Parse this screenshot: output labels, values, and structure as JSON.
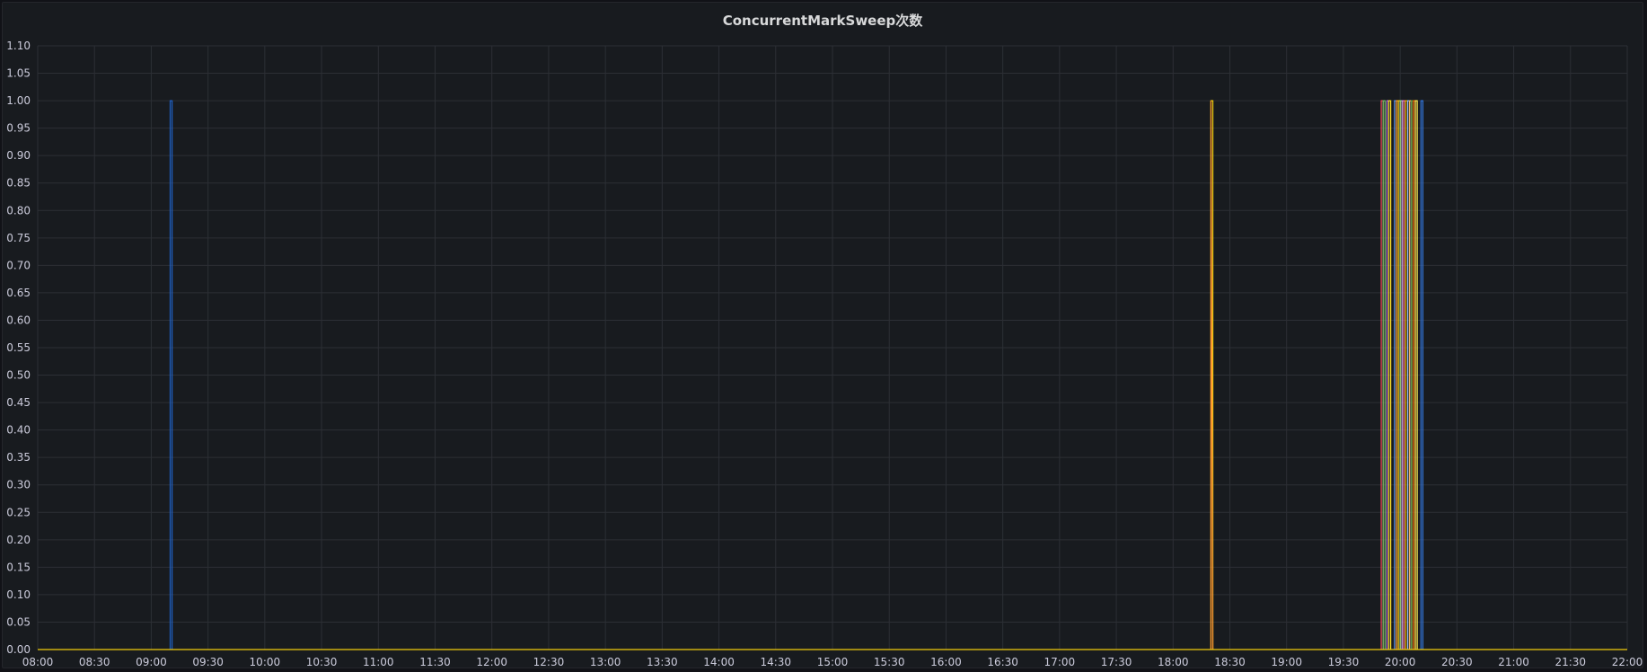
{
  "panel": {
    "title": "ConcurrentMarkSweep次数"
  },
  "chart_data": {
    "type": "line",
    "title": "ConcurrentMarkSweep次数",
    "xlabel": "",
    "ylabel": "",
    "grid": true,
    "legend": "none",
    "x_range": [
      "08:00",
      "22:00"
    ],
    "ylim": [
      0,
      1.1
    ],
    "y_ticks": [
      "0.00",
      "0.05",
      "0.10",
      "0.15",
      "0.20",
      "0.25",
      "0.30",
      "0.35",
      "0.40",
      "0.45",
      "0.50",
      "0.55",
      "0.60",
      "0.65",
      "0.70",
      "0.75",
      "0.80",
      "0.85",
      "0.90",
      "0.95",
      "1.00",
      "1.05",
      "1.10"
    ],
    "x_ticks": [
      "08:00",
      "08:30",
      "09:00",
      "09:30",
      "10:00",
      "10:30",
      "11:00",
      "11:30",
      "12:00",
      "12:30",
      "13:00",
      "13:30",
      "14:00",
      "14:30",
      "15:00",
      "15:30",
      "16:00",
      "16:30",
      "17:00",
      "17:30",
      "18:00",
      "18:30",
      "19:00",
      "19:30",
      "20:00",
      "20:30",
      "21:00",
      "21:30",
      "22:00"
    ],
    "colors": {
      "background": "#181b1f",
      "grid": "#2c2f35",
      "axis_text": "#ccccdc",
      "title_text": "#d8d9da"
    },
    "series": [
      {
        "color": "#1f60c4",
        "points": [
          [
            "09:10",
            0
          ],
          [
            "09:10",
            1
          ],
          [
            "09:11",
            1
          ],
          [
            "09:11",
            0
          ]
        ]
      },
      {
        "color": "#f2cc0c",
        "points": [
          [
            "18:20",
            0
          ],
          [
            "18:20",
            1
          ],
          [
            "18:21",
            1
          ],
          [
            "18:21",
            0
          ]
        ]
      },
      {
        "color": "#ff9830",
        "points": [
          [
            "18:20",
            0
          ],
          [
            "18:20",
            1
          ],
          [
            "18:20",
            1
          ],
          [
            "18:21",
            0
          ]
        ]
      },
      {
        "color": "#f2495c",
        "points": [
          [
            "19:50",
            0
          ],
          [
            "19:50",
            1
          ],
          [
            "19:51",
            1
          ],
          [
            "19:51",
            0
          ]
        ]
      },
      {
        "color": "#73bf69",
        "points": [
          [
            "19:51",
            0
          ],
          [
            "19:51",
            1
          ],
          [
            "19:52",
            1
          ],
          [
            "19:52",
            0
          ]
        ]
      },
      {
        "color": "#b877d9",
        "points": [
          [
            "19:53",
            0
          ],
          [
            "19:53",
            1
          ],
          [
            "19:54",
            1
          ],
          [
            "19:54",
            0
          ]
        ]
      },
      {
        "color": "#fade2a",
        "points": [
          [
            "19:54",
            0
          ],
          [
            "19:54",
            1
          ],
          [
            "19:55",
            1
          ],
          [
            "19:55",
            0
          ]
        ]
      },
      {
        "color": "#5794f2",
        "points": [
          [
            "19:57",
            0
          ],
          [
            "19:57",
            1
          ],
          [
            "19:58",
            1
          ],
          [
            "19:58",
            0
          ]
        ]
      },
      {
        "color": "#ff9830",
        "points": [
          [
            "19:58",
            0
          ],
          [
            "19:58",
            1
          ],
          [
            "19:59",
            1
          ],
          [
            "19:59",
            0
          ]
        ]
      },
      {
        "color": "#f2cc0c",
        "points": [
          [
            "19:59",
            0
          ],
          [
            "19:59",
            1
          ],
          [
            "20:00",
            1
          ],
          [
            "20:00",
            0
          ]
        ]
      },
      {
        "color": "#96d98d",
        "points": [
          [
            "20:00",
            0
          ],
          [
            "20:00",
            1
          ],
          [
            "20:01",
            1
          ],
          [
            "20:01",
            0
          ]
        ]
      },
      {
        "color": "#ca95e5",
        "points": [
          [
            "20:01",
            0
          ],
          [
            "20:01",
            1
          ],
          [
            "20:02",
            1
          ],
          [
            "20:02",
            0
          ]
        ]
      },
      {
        "color": "#ff7383",
        "points": [
          [
            "20:02",
            0
          ],
          [
            "20:02",
            1
          ],
          [
            "20:03",
            1
          ],
          [
            "20:03",
            0
          ]
        ]
      },
      {
        "color": "#e0b400",
        "points": [
          [
            "20:03",
            0
          ],
          [
            "20:03",
            1
          ],
          [
            "20:04",
            1
          ],
          [
            "20:04",
            0
          ]
        ]
      },
      {
        "color": "#8ab8ff",
        "points": [
          [
            "20:04",
            0
          ],
          [
            "20:04",
            1
          ],
          [
            "20:05",
            1
          ],
          [
            "20:05",
            0
          ]
        ]
      },
      {
        "color": "#ffb357",
        "points": [
          [
            "20:05",
            0
          ],
          [
            "20:05",
            1
          ],
          [
            "20:06",
            1
          ],
          [
            "20:06",
            0
          ]
        ]
      },
      {
        "color": "#56a64b",
        "points": [
          [
            "20:06",
            0
          ],
          [
            "20:06",
            1
          ],
          [
            "20:07",
            1
          ],
          [
            "20:07",
            0
          ]
        ]
      },
      {
        "color": "#fa6400",
        "points": [
          [
            "20:07",
            0
          ],
          [
            "20:07",
            1
          ],
          [
            "20:08",
            1
          ],
          [
            "20:08",
            0
          ]
        ]
      },
      {
        "color": "#ffee52",
        "points": [
          [
            "20:08",
            0
          ],
          [
            "20:08",
            1
          ],
          [
            "20:09",
            1
          ],
          [
            "20:09",
            0
          ]
        ]
      },
      {
        "color": "#3274d9",
        "points": [
          [
            "20:11",
            0
          ],
          [
            "20:11",
            1
          ],
          [
            "20:12",
            1
          ],
          [
            "20:12",
            0
          ]
        ]
      }
    ]
  }
}
